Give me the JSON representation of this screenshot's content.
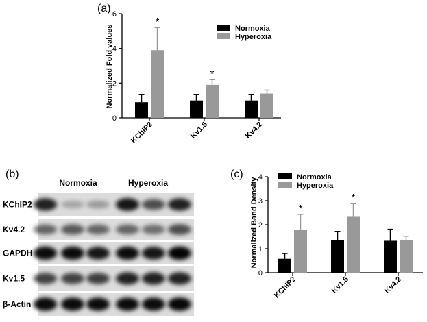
{
  "chart_data": [
    {
      "panel": "(a)",
      "type": "bar",
      "categories": [
        "KChIP2",
        "Kv1.5",
        "Kv4.2"
      ],
      "ylabel": "Normalized Fold values",
      "ylim": [
        0,
        6
      ],
      "yticks": [
        0,
        2,
        4,
        6
      ],
      "legend_position": "top-right",
      "series": [
        {
          "name": "Normoxia",
          "color": "#000000",
          "values": [
            0.9,
            1.0,
            1.0
          ],
          "errors": [
            0.45,
            0.35,
            0.35
          ]
        },
        {
          "name": "Hyperoxia",
          "color": "#999999",
          "values": [
            3.9,
            1.9,
            1.4
          ],
          "errors": [
            1.3,
            0.3,
            0.2
          ]
        }
      ],
      "significance": [
        "*",
        "*",
        ""
      ],
      "grid": false
    },
    {
      "panel": "(c)",
      "type": "bar",
      "categories": [
        "KChIP2",
        "Kv1.5",
        "Kv4.2"
      ],
      "ylabel": "Normalized Band Density",
      "ylim": [
        0,
        4
      ],
      "yticks": [
        0,
        1,
        2,
        3,
        4
      ],
      "legend_position": "top-left",
      "series": [
        {
          "name": "Normoxia",
          "color": "#000000",
          "values": [
            0.58,
            1.35,
            1.33
          ],
          "errors": [
            0.22,
            0.37,
            0.48
          ]
        },
        {
          "name": "Hyperoxia",
          "color": "#999999",
          "values": [
            1.78,
            2.33,
            1.37
          ],
          "errors": [
            0.65,
            0.55,
            0.15
          ]
        }
      ],
      "significance": [
        "*",
        "*",
        ""
      ],
      "grid": false
    }
  ],
  "blot": {
    "panel": "(b)",
    "group_labels": [
      "Normoxia",
      "Hyperoxia"
    ],
    "rows": [
      {
        "label": "KChIP2",
        "intensities": [
          0.85,
          0.25,
          0.3,
          0.9,
          0.65,
          0.85
        ]
      },
      {
        "label": "Kv4.2",
        "intensities": [
          0.55,
          0.6,
          0.55,
          0.55,
          0.5,
          0.65
        ]
      },
      {
        "label": "GAPDH",
        "intensities": [
          0.95,
          0.95,
          0.9,
          0.95,
          0.9,
          0.98
        ]
      },
      {
        "label": "Kv1.5",
        "intensities": [
          0.7,
          0.7,
          0.72,
          0.85,
          0.85,
          0.85
        ]
      },
      {
        "label": "β-Actin",
        "intensities": [
          0.95,
          0.95,
          0.95,
          0.95,
          0.95,
          0.97
        ]
      }
    ]
  }
}
